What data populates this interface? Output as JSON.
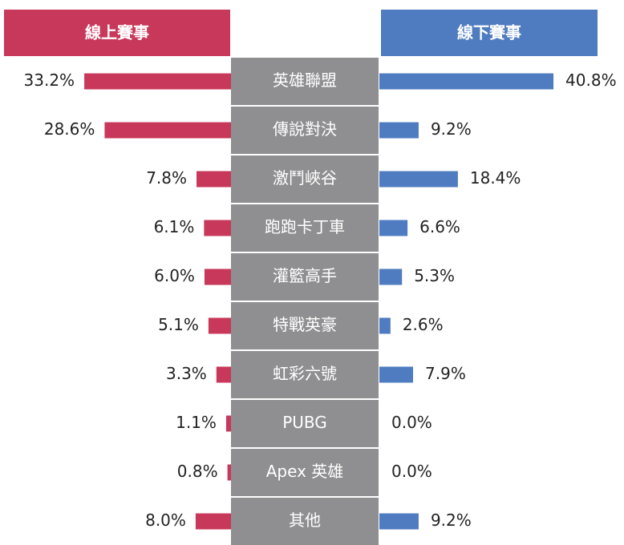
{
  "chart_data": {
    "type": "butterfly",
    "categories": [
      "英雄聯盟",
      "傳說對決",
      "激鬥峽谷",
      "跑跑卡丁車",
      "灌籃高手",
      "特戰英豪",
      "虹彩六號",
      "PUBG",
      "Apex 英雄",
      "其他"
    ],
    "series": [
      {
        "name": "線上賽事",
        "color": "#c8385a",
        "values": [
          33.2,
          28.6,
          7.8,
          6.1,
          6.0,
          5.1,
          3.3,
          1.1,
          0.8,
          8.0
        ],
        "value_labels": [
          "33.2%",
          "28.6%",
          "7.8%",
          "6.1%",
          "6.0%",
          "5.1%",
          "3.3%",
          "1.1%",
          "0.8%",
          "8.0%"
        ]
      },
      {
        "name": "線下賽事",
        "color": "#4f7cc0",
        "values": [
          40.8,
          9.2,
          18.4,
          6.6,
          5.3,
          2.6,
          7.9,
          0.0,
          0.0,
          9.2
        ],
        "value_labels": [
          "40.8%",
          "9.2%",
          "18.4%",
          "6.6%",
          "5.3%",
          "2.6%",
          "7.9%",
          "0.0%",
          "0.0%",
          "9.2%"
        ]
      }
    ]
  }
}
